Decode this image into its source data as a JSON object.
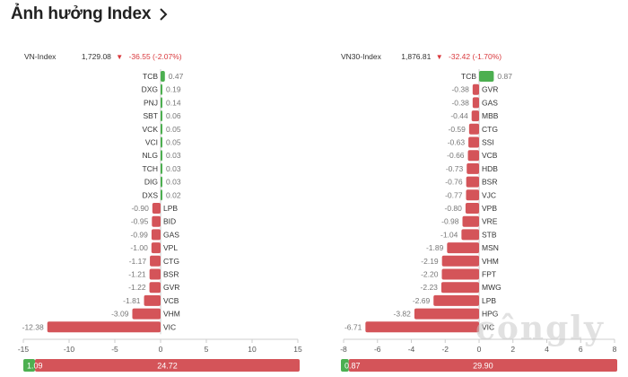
{
  "page": {
    "title": "Ảnh hưởng Index",
    "chevron_icon": "chevron-right-icon",
    "watermark_text": "côngly"
  },
  "colors": {
    "positive": "#4caf50",
    "negative": "#d45459",
    "axis": "#cccccc",
    "label": "#333333",
    "value_text": "#777777",
    "change": "#d9383c"
  },
  "chart_data": [
    {
      "type": "bar",
      "orientation": "horizontal",
      "index_name": "VN-Index",
      "index_value": "1,729.08",
      "index_arrow": "▼",
      "index_change": "-36.55 (-2.07%)",
      "categories": [
        "TCB",
        "DXG",
        "PNJ",
        "SBT",
        "VCK",
        "VCI",
        "NLG",
        "TCH",
        "DIG",
        "DXS",
        "LPB",
        "BID",
        "GAS",
        "VPL",
        "CTG",
        "BSR",
        "GVR",
        "VCB",
        "VHM",
        "VIC"
      ],
      "values": [
        0.47,
        0.19,
        0.14,
        0.06,
        0.05,
        0.05,
        0.03,
        0.03,
        0.03,
        0.02,
        -0.9,
        -0.95,
        -0.99,
        -1.0,
        -1.17,
        -1.21,
        -1.22,
        -1.81,
        -3.09,
        -12.38
      ],
      "value_labels": [
        "0.47",
        "0.19",
        "0.14",
        "0.06",
        "0.05",
        "0.05",
        "0.03",
        "0.03",
        "0.03",
        "0.02",
        "-0.90",
        "-0.95",
        "-0.99",
        "-1.00",
        "-1.17",
        "-1.21",
        "-1.22",
        "-1.81",
        "-3.09",
        "-12.38"
      ],
      "xlim": [
        -15,
        15
      ],
      "xticks": [
        -15,
        -10,
        -5,
        0,
        5,
        10,
        15
      ],
      "xtick_labels": [
        "-15",
        "-10",
        "-5",
        "0",
        "5",
        "10",
        "15"
      ],
      "summary": {
        "positive_total": 1.09,
        "positive_label": "1.09",
        "negative_total": 24.72,
        "negative_label": "24.72"
      }
    },
    {
      "type": "bar",
      "orientation": "horizontal",
      "index_name": "VN30-Index",
      "index_value": "1,876.81",
      "index_arrow": "▼",
      "index_change": "-32.42 (-1.70%)",
      "categories": [
        "TCB",
        "GVR",
        "GAS",
        "MBB",
        "CTG",
        "SSI",
        "VCB",
        "HDB",
        "BSR",
        "VJC",
        "VPB",
        "VRE",
        "STB",
        "MSN",
        "VHM",
        "FPT",
        "MWG",
        "LPB",
        "HPG",
        "VIC"
      ],
      "values": [
        0.87,
        -0.38,
        -0.38,
        -0.44,
        -0.59,
        -0.63,
        -0.66,
        -0.73,
        -0.76,
        -0.77,
        -0.8,
        -0.98,
        -1.04,
        -1.89,
        -2.19,
        -2.2,
        -2.23,
        -2.69,
        -3.82,
        -6.71
      ],
      "value_labels": [
        "0.87",
        "-0.38",
        "-0.38",
        "-0.44",
        "-0.59",
        "-0.63",
        "-0.66",
        "-0.73",
        "-0.76",
        "-0.77",
        "-0.80",
        "-0.98",
        "-1.04",
        "-1.89",
        "-2.19",
        "-2.20",
        "-2.23",
        "-2.69",
        "-3.82",
        "-6.71"
      ],
      "xlim": [
        -8,
        8
      ],
      "xticks": [
        -8,
        -6,
        -4,
        -2,
        0,
        2,
        4,
        6,
        8
      ],
      "xtick_labels": [
        "-8",
        "-6",
        "-4",
        "-2",
        "0",
        "2",
        "4",
        "6",
        "8"
      ],
      "summary": {
        "positive_total": 0.87,
        "positive_label": "0.87",
        "negative_total": 29.9,
        "negative_label": "29.90"
      }
    }
  ]
}
